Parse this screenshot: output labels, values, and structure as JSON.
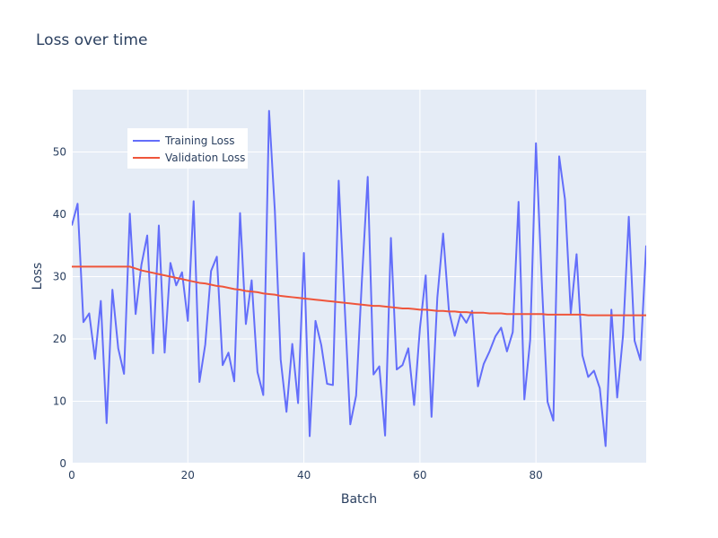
{
  "chart_data": {
    "type": "line",
    "title": "Loss over time",
    "xlabel": "Batch",
    "ylabel": "Loss",
    "xlim": [
      0,
      99
    ],
    "ylim": [
      0,
      60
    ],
    "x_ticks": [
      0,
      20,
      40,
      60,
      80
    ],
    "y_ticks": [
      0,
      10,
      20,
      30,
      40,
      50
    ],
    "grid": true,
    "legend_position": "top-left",
    "series": [
      {
        "name": "Training Loss",
        "color": "#636efa",
        "x": [
          0,
          1,
          2,
          3,
          4,
          5,
          6,
          7,
          8,
          9,
          10,
          11,
          12,
          13,
          14,
          15,
          16,
          17,
          18,
          19,
          20,
          21,
          22,
          23,
          24,
          25,
          26,
          27,
          28,
          29,
          30,
          31,
          32,
          33,
          34,
          35,
          36,
          37,
          38,
          39,
          40,
          41,
          42,
          43,
          44,
          45,
          46,
          47,
          48,
          49,
          50,
          51,
          52,
          53,
          54,
          55,
          56,
          57,
          58,
          59,
          60,
          61,
          62,
          63,
          64,
          65,
          66,
          67,
          68,
          69,
          70,
          71,
          72,
          73,
          74,
          75,
          76,
          77,
          78,
          79,
          80,
          81,
          82,
          83,
          84,
          85,
          86,
          87,
          88,
          89,
          90,
          91,
          92,
          93,
          94,
          95,
          96,
          97,
          98,
          99
        ],
        "values": [
          38.2,
          41.7,
          22.7,
          24.1,
          16.8,
          26.1,
          6.5,
          27.9,
          18.5,
          14.4,
          40.1,
          24.0,
          31.9,
          36.6,
          17.7,
          38.2,
          17.8,
          32.2,
          28.6,
          30.7,
          22.9,
          42.1,
          13.1,
          19.1,
          30.9,
          33.2,
          15.8,
          17.8,
          13.2,
          40.2,
          22.4,
          29.4,
          14.7,
          11.0,
          56.6,
          40.5,
          16.7,
          8.3,
          19.2,
          9.7,
          33.8,
          4.4,
          22.9,
          19.0,
          12.8,
          12.6,
          45.4,
          25.9,
          6.3,
          10.9,
          29.4,
          46.0,
          14.3,
          15.6,
          4.5,
          36.2,
          15.1,
          15.8,
          18.5,
          9.4,
          21.7,
          30.2,
          7.5,
          26.6,
          36.9,
          24.5,
          20.5,
          24.0,
          22.6,
          24.5,
          12.4,
          16.0,
          18.0,
          20.4,
          21.8,
          18.0,
          21.1,
          42.0,
          10.3,
          19.8,
          51.4,
          29.2,
          9.9,
          6.9,
          49.3,
          42.4,
          24.1,
          33.6,
          17.4,
          13.9,
          14.9,
          12.1,
          2.8,
          24.7,
          10.6,
          20.5,
          39.6,
          19.7,
          16.6,
          35.0
        ]
      },
      {
        "name": "Validation Loss",
        "color": "#ef553b",
        "x": [
          0,
          1,
          2,
          3,
          4,
          5,
          6,
          7,
          8,
          9,
          10,
          11,
          12,
          13,
          14,
          15,
          16,
          17,
          18,
          19,
          20,
          21,
          22,
          23,
          24,
          25,
          26,
          27,
          28,
          29,
          30,
          31,
          32,
          33,
          34,
          35,
          36,
          37,
          38,
          39,
          40,
          41,
          42,
          43,
          44,
          45,
          46,
          47,
          48,
          49,
          50,
          51,
          52,
          53,
          54,
          55,
          56,
          57,
          58,
          59,
          60,
          61,
          62,
          63,
          64,
          65,
          66,
          67,
          68,
          69,
          70,
          71,
          72,
          73,
          74,
          75,
          76,
          77,
          78,
          79,
          80,
          81,
          82,
          83,
          84,
          85,
          86,
          87,
          88,
          89,
          90,
          91,
          92,
          93,
          94,
          95,
          96,
          97,
          98,
          99
        ],
        "values": [
          31.6,
          31.6,
          31.6,
          31.6,
          31.6,
          31.6,
          31.6,
          31.6,
          31.6,
          31.6,
          31.6,
          31.3,
          31.0,
          30.8,
          30.6,
          30.4,
          30.2,
          30.0,
          29.8,
          29.6,
          29.4,
          29.2,
          29.0,
          28.9,
          28.7,
          28.5,
          28.4,
          28.2,
          28.0,
          27.9,
          27.7,
          27.6,
          27.5,
          27.3,
          27.2,
          27.1,
          26.9,
          26.8,
          26.7,
          26.6,
          26.5,
          26.4,
          26.3,
          26.2,
          26.1,
          26.0,
          25.9,
          25.8,
          25.7,
          25.6,
          25.5,
          25.4,
          25.3,
          25.3,
          25.2,
          25.1,
          25.0,
          24.9,
          24.9,
          24.8,
          24.7,
          24.7,
          24.6,
          24.5,
          24.5,
          24.4,
          24.4,
          24.3,
          24.3,
          24.2,
          24.2,
          24.2,
          24.1,
          24.1,
          24.1,
          24.0,
          24.0,
          24.0,
          24.0,
          24.0,
          24.0,
          24.0,
          23.9,
          23.9,
          23.9,
          23.9,
          23.9,
          23.9,
          23.9,
          23.8,
          23.8,
          23.8,
          23.8,
          23.8,
          23.8,
          23.8,
          23.8,
          23.8,
          23.8,
          23.8
        ]
      }
    ]
  }
}
